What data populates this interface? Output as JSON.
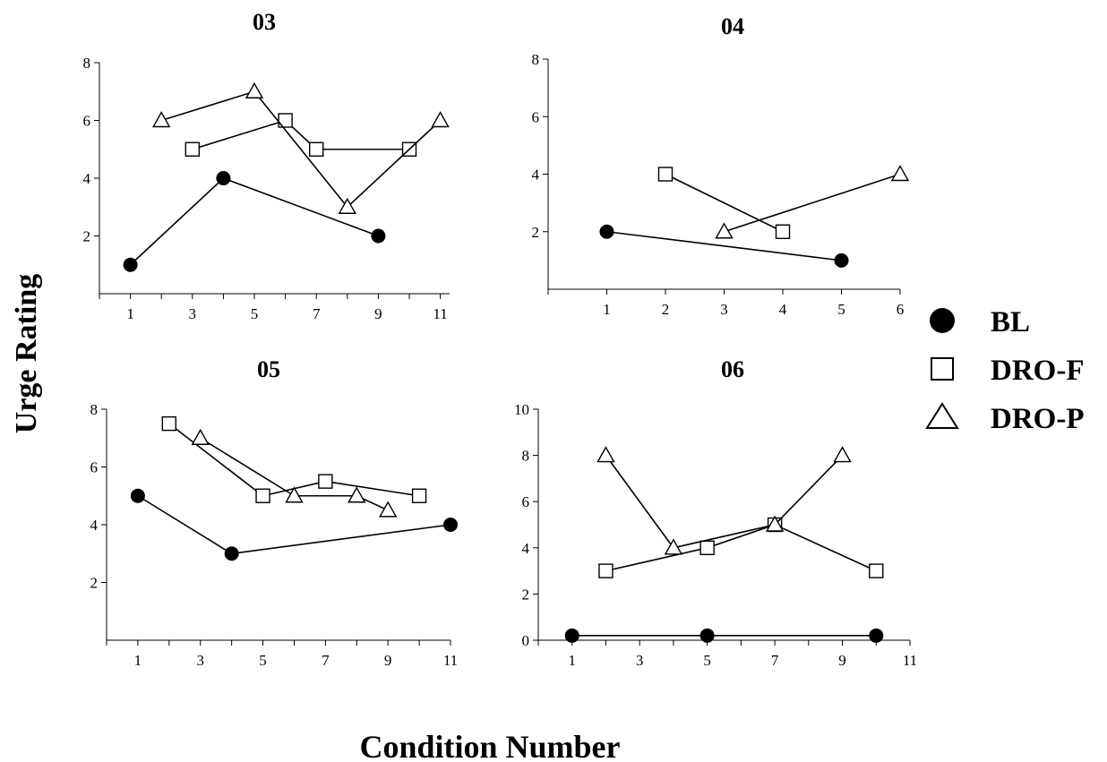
{
  "figure": {
    "ylabel": "Urge Rating",
    "xlabel": "Condition Number",
    "legend": {
      "placement": "right",
      "entries": [
        {
          "label": "BL",
          "marker": "filled-circle"
        },
        {
          "label": "DRO-F",
          "marker": "open-square"
        },
        {
          "label": "DRO-P",
          "marker": "open-triangle"
        }
      ]
    }
  },
  "chart_data": [
    {
      "type": "line",
      "title": "03",
      "ylim": [
        0,
        8
      ],
      "yticks": [
        2,
        4,
        6,
        8
      ],
      "xlim": [
        0,
        11.3
      ],
      "xticks": [
        1,
        3,
        5,
        7,
        9,
        11
      ],
      "series": [
        {
          "name": "BL",
          "marker": "filled-circle",
          "x": [
            1,
            4,
            9
          ],
          "y": [
            1,
            4,
            2
          ]
        },
        {
          "name": "DRO-F",
          "marker": "open-square",
          "x": [
            3,
            6,
            7,
            10
          ],
          "y": [
            5,
            6,
            5,
            5
          ]
        },
        {
          "name": "DRO-P",
          "marker": "open-triangle",
          "x": [
            2,
            5,
            8,
            11
          ],
          "y": [
            6,
            7,
            3,
            6
          ]
        }
      ]
    },
    {
      "type": "line",
      "title": "04",
      "ylim": [
        0,
        8
      ],
      "yticks": [
        2,
        4,
        6,
        8
      ],
      "xlim": [
        0,
        6
      ],
      "xticks": [
        1,
        2,
        3,
        4,
        5,
        6
      ],
      "series": [
        {
          "name": "BL",
          "marker": "filled-circle",
          "x": [
            1,
            5
          ],
          "y": [
            2,
            1
          ]
        },
        {
          "name": "DRO-F",
          "marker": "open-square",
          "x": [
            2,
            4
          ],
          "y": [
            4,
            2
          ]
        },
        {
          "name": "DRO-P",
          "marker": "open-triangle",
          "x": [
            3,
            6
          ],
          "y": [
            2,
            4
          ]
        }
      ]
    },
    {
      "type": "line",
      "title": "05",
      "ylim": [
        0,
        8
      ],
      "yticks": [
        2,
        4,
        6,
        8
      ],
      "xlim": [
        0,
        11
      ],
      "xticks": [
        1,
        3,
        5,
        7,
        9,
        11
      ],
      "series": [
        {
          "name": "BL",
          "marker": "filled-circle",
          "x": [
            1,
            4,
            11
          ],
          "y": [
            5,
            3,
            4
          ]
        },
        {
          "name": "DRO-F",
          "marker": "open-square",
          "x": [
            2,
            5,
            7,
            10
          ],
          "y": [
            7.5,
            5,
            5.5,
            5
          ]
        },
        {
          "name": "DRO-P",
          "marker": "open-triangle",
          "x": [
            3,
            6,
            8,
            9
          ],
          "y": [
            7,
            5,
            5,
            4.5
          ]
        }
      ]
    },
    {
      "type": "line",
      "title": "06",
      "ylim": [
        0,
        10
      ],
      "yticks": [
        0,
        2,
        4,
        6,
        8,
        10
      ],
      "xlim": [
        0,
        11
      ],
      "xticks": [
        1,
        3,
        5,
        7,
        9,
        11
      ],
      "series": [
        {
          "name": "BL",
          "marker": "filled-circle",
          "x": [
            1,
            5,
            10
          ],
          "y": [
            0.2,
            0.2,
            0.2
          ]
        },
        {
          "name": "DRO-F",
          "marker": "open-square",
          "x": [
            2,
            5,
            7,
            10
          ],
          "y": [
            3,
            4,
            5,
            3
          ]
        },
        {
          "name": "DRO-P",
          "marker": "open-triangle",
          "x": [
            2,
            4,
            7,
            9
          ],
          "y": [
            8,
            4,
            5,
            8
          ]
        }
      ]
    }
  ]
}
